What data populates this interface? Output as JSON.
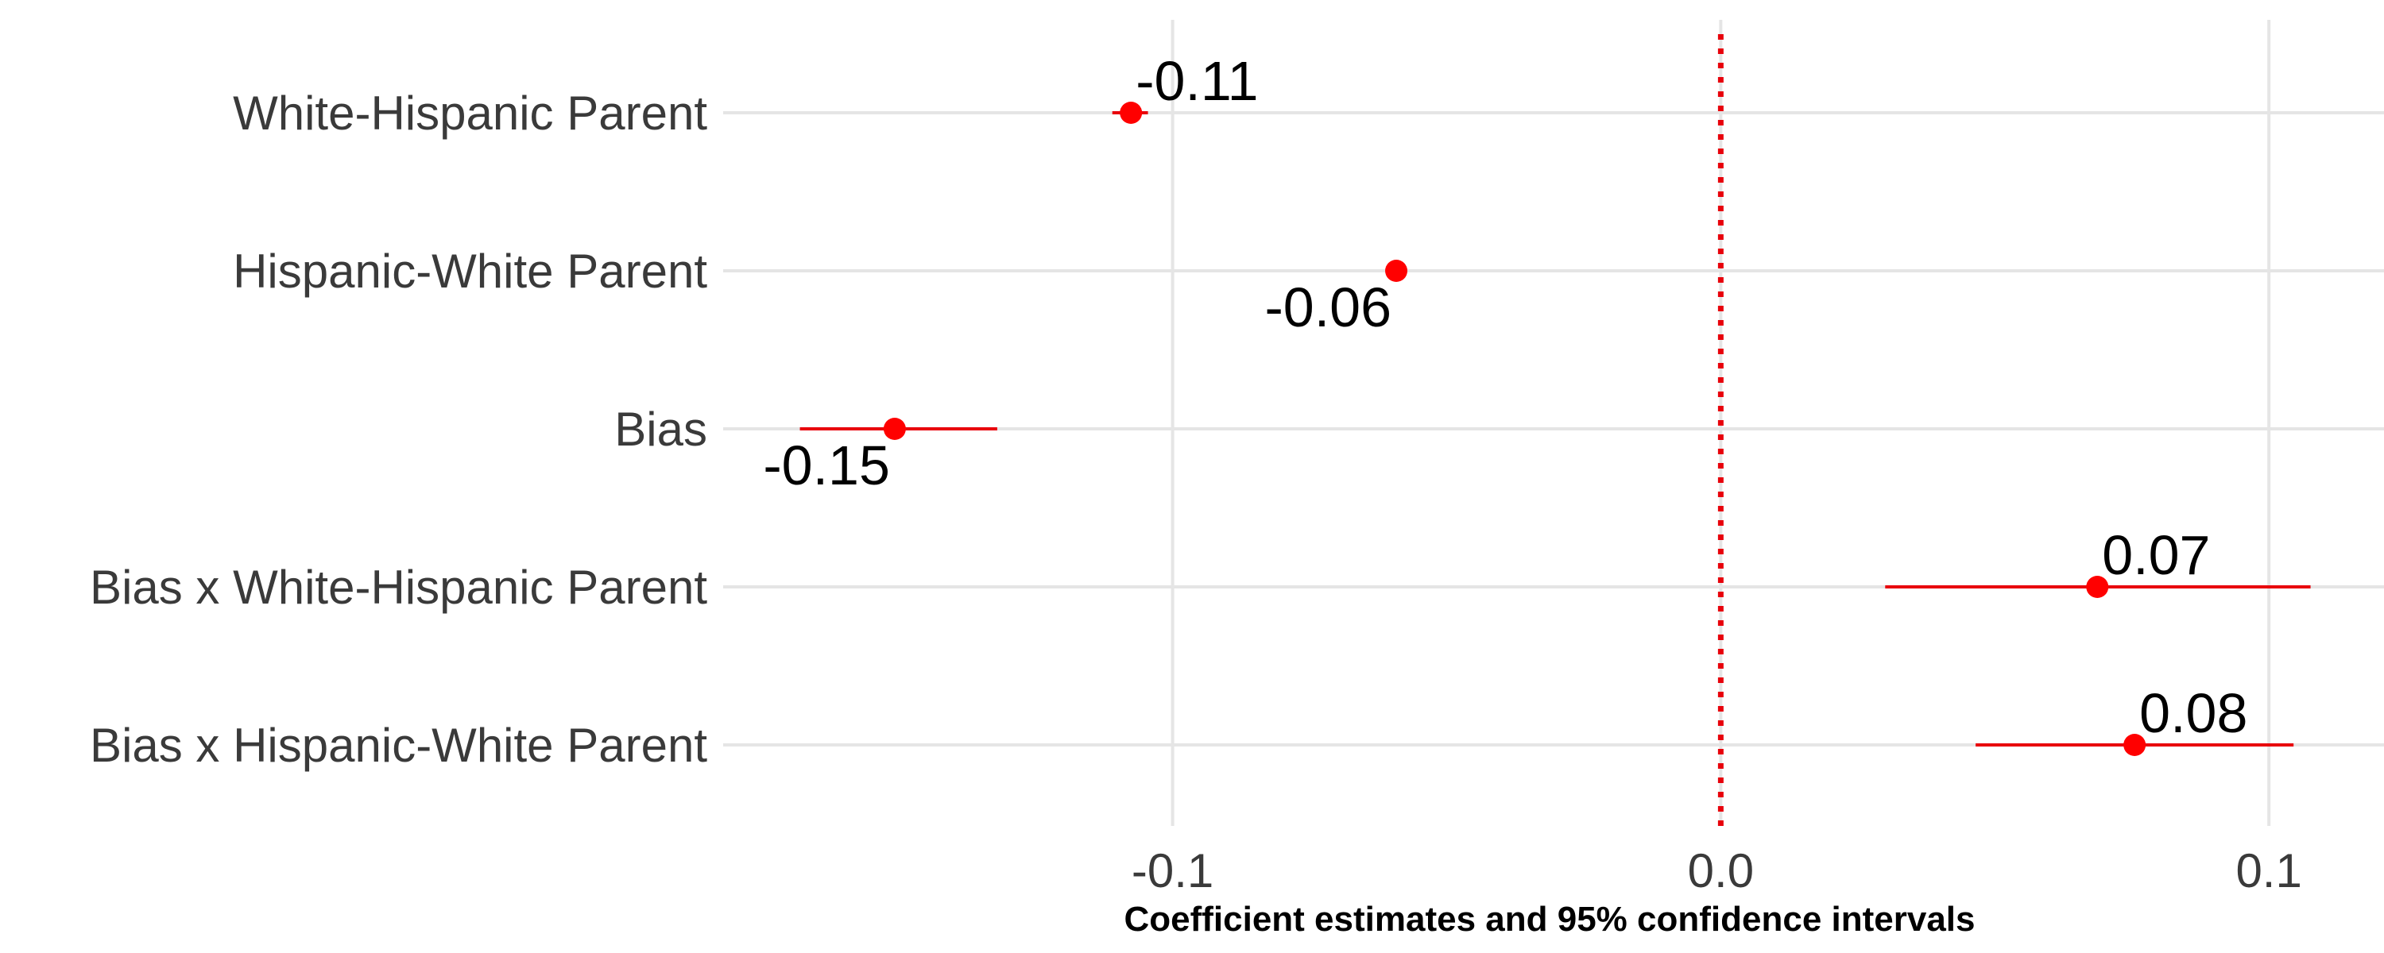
{
  "chart_data": {
    "type": "scatter",
    "subtype": "coefficient-plot",
    "title": "",
    "xlabel": "Coefficient estimates and 95% confidence intervals",
    "ylabel": "",
    "xlim": [
      -0.182,
      0.121
    ],
    "x_ticks": [
      -0.1,
      0.0,
      0.1
    ],
    "x_tick_labels": [
      "-0.1",
      "0.0",
      "0.1"
    ],
    "reference_line": {
      "x": 0.0,
      "style": "dotted",
      "color": "#e8000b"
    },
    "grid": true,
    "legend": "none",
    "colors": {
      "point": "#ff0000",
      "interval": "#e8000b",
      "grid": "#e5e5e5"
    },
    "series": [
      {
        "values": [
          {
            "term": "White-Hispanic Parent",
            "estimate": -0.11,
            "x": -0.1076,
            "ci_low": -0.111,
            "ci_high": -0.1045,
            "label": "-0.11",
            "label_pos": "above-right"
          },
          {
            "term": "Hispanic-White Parent",
            "estimate": -0.06,
            "x": -0.0592,
            "ci_low": -0.0605,
            "ci_high": -0.0578,
            "label": "-0.06",
            "label_pos": "below-left"
          },
          {
            "term": "Bias",
            "estimate": -0.15,
            "x": -0.1507,
            "ci_low": -0.168,
            "ci_high": -0.132,
            "label": "-0.15",
            "label_pos": "below-left"
          },
          {
            "term": "Bias x White-Hispanic Parent",
            "estimate": 0.07,
            "x": 0.0687,
            "ci_low": 0.03,
            "ci_high": 0.1076,
            "label": "0.07",
            "label_pos": "above-right"
          },
          {
            "term": "Bias x Hispanic-White Parent",
            "estimate": 0.08,
            "x": 0.0755,
            "ci_low": 0.0465,
            "ci_high": 0.1045,
            "label": "0.08",
            "label_pos": "above-right"
          }
        ]
      }
    ]
  }
}
